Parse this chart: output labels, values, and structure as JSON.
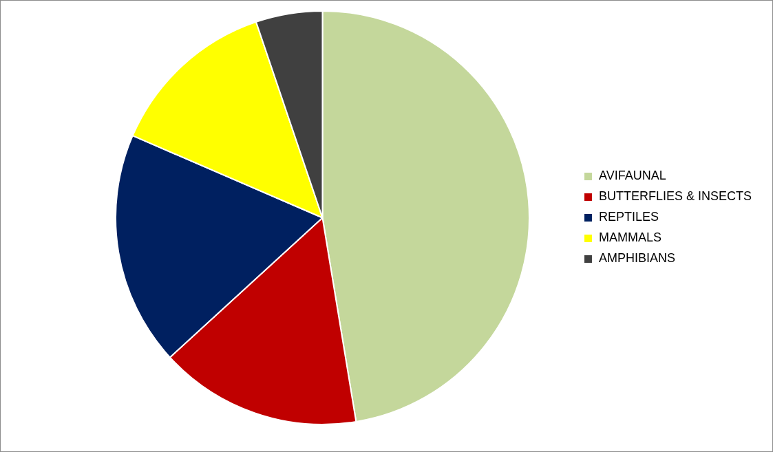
{
  "chart_data": {
    "type": "pie",
    "categories": [
      "AVIFAUNAL",
      "BUTTERFLIES & INSECTS",
      "REPTILES",
      "MAMMALS",
      "AMPHIBIANS"
    ],
    "values": [
      47.4,
      15.8,
      18.3,
      13.3,
      5.2
    ],
    "colors": [
      "#c4d79b",
      "#c00000",
      "#002060",
      "#ffff00",
      "#404040"
    ],
    "legend": "right"
  }
}
